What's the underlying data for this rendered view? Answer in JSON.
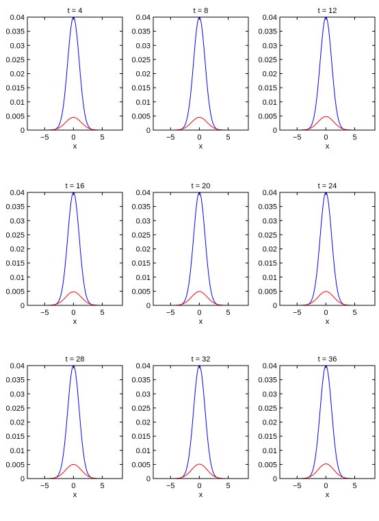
{
  "figure": {
    "rows": 3,
    "cols": 3
  },
  "chart_data": [
    {
      "type": "line",
      "title": "t = 4",
      "xlabel": "x",
      "ylabel": "",
      "xlim": [
        -8,
        8.5
      ],
      "ylim": [
        0,
        0.04
      ],
      "xticks": [
        -5,
        0,
        5
      ],
      "yticks": [
        0,
        0.005,
        0.01,
        0.015,
        0.02,
        0.025,
        0.03,
        0.035,
        0.04
      ],
      "grid": false,
      "series": [
        {
          "color": "#0000ff",
          "peak": 0.04,
          "sigma": 1.0
        },
        {
          "color": "#ff0000",
          "peak": 0.0045,
          "sigma": 1.35
        }
      ]
    },
    {
      "type": "line",
      "title": "t = 8",
      "xlabel": "x",
      "ylabel": "",
      "xlim": [
        -8,
        8.5
      ],
      "ylim": [
        0,
        0.04
      ],
      "xticks": [
        -5,
        0,
        5
      ],
      "yticks": [
        0,
        0.005,
        0.01,
        0.015,
        0.02,
        0.025,
        0.03,
        0.035,
        0.04
      ],
      "grid": false,
      "series": [
        {
          "color": "#0000ff",
          "peak": 0.04,
          "sigma": 1.0
        },
        {
          "color": "#ff0000",
          "peak": 0.0045,
          "sigma": 1.35
        }
      ]
    },
    {
      "type": "line",
      "title": "t = 12",
      "xlabel": "x",
      "ylabel": "",
      "xlim": [
        -8,
        8.5
      ],
      "ylim": [
        0,
        0.04
      ],
      "xticks": [
        -5,
        0,
        5
      ],
      "yticks": [
        0,
        0.005,
        0.01,
        0.015,
        0.02,
        0.025,
        0.03,
        0.035,
        0.04
      ],
      "grid": false,
      "series": [
        {
          "color": "#0000ff",
          "peak": 0.04,
          "sigma": 1.0
        },
        {
          "color": "#ff0000",
          "peak": 0.0048,
          "sigma": 1.35
        }
      ]
    },
    {
      "type": "line",
      "title": "t = 16",
      "xlabel": "x",
      "ylabel": "",
      "xlim": [
        -8,
        8.5
      ],
      "ylim": [
        0,
        0.04
      ],
      "xticks": [
        -5,
        0,
        5
      ],
      "yticks": [
        0,
        0.005,
        0.01,
        0.015,
        0.02,
        0.025,
        0.03,
        0.035,
        0.04
      ],
      "grid": false,
      "series": [
        {
          "color": "#0000ff",
          "peak": 0.04,
          "sigma": 1.0
        },
        {
          "color": "#ff0000",
          "peak": 0.0048,
          "sigma": 1.35
        }
      ]
    },
    {
      "type": "line",
      "title": "t = 20",
      "xlabel": "x",
      "ylabel": "",
      "xlim": [
        -8,
        8.5
      ],
      "ylim": [
        0,
        0.04
      ],
      "xticks": [
        -5,
        0,
        5
      ],
      "yticks": [
        0,
        0.005,
        0.01,
        0.015,
        0.02,
        0.025,
        0.03,
        0.035,
        0.04
      ],
      "grid": false,
      "series": [
        {
          "color": "#0000ff",
          "peak": 0.04,
          "sigma": 1.0
        },
        {
          "color": "#ff0000",
          "peak": 0.0049,
          "sigma": 1.35
        }
      ]
    },
    {
      "type": "line",
      "title": "t = 24",
      "xlabel": "x",
      "ylabel": "",
      "xlim": [
        -8,
        8.5
      ],
      "ylim": [
        0,
        0.04
      ],
      "xticks": [
        -5,
        0,
        5
      ],
      "yticks": [
        0,
        0.005,
        0.01,
        0.015,
        0.02,
        0.025,
        0.03,
        0.035,
        0.04
      ],
      "grid": false,
      "series": [
        {
          "color": "#0000ff",
          "peak": 0.04,
          "sigma": 1.0
        },
        {
          "color": "#ff0000",
          "peak": 0.0049,
          "sigma": 1.35
        }
      ]
    },
    {
      "type": "line",
      "title": "t = 28",
      "xlabel": "x",
      "ylabel": "",
      "xlim": [
        -8,
        8.5
      ],
      "ylim": [
        0,
        0.04
      ],
      "xticks": [
        -5,
        0,
        5
      ],
      "yticks": [
        0,
        0.005,
        0.01,
        0.015,
        0.02,
        0.025,
        0.03,
        0.035,
        0.04
      ],
      "grid": false,
      "series": [
        {
          "color": "#0000ff",
          "peak": 0.04,
          "sigma": 1.0
        },
        {
          "color": "#ff0000",
          "peak": 0.005,
          "sigma": 1.35
        }
      ]
    },
    {
      "type": "line",
      "title": "t = 32",
      "xlabel": "x",
      "ylabel": "",
      "xlim": [
        -8,
        8.5
      ],
      "ylim": [
        0,
        0.04
      ],
      "xticks": [
        -5,
        0,
        5
      ],
      "yticks": [
        0,
        0.005,
        0.01,
        0.015,
        0.02,
        0.025,
        0.03,
        0.035,
        0.04
      ],
      "grid": false,
      "series": [
        {
          "color": "#0000ff",
          "peak": 0.04,
          "sigma": 1.0
        },
        {
          "color": "#ff0000",
          "peak": 0.0051,
          "sigma": 1.35
        }
      ]
    },
    {
      "type": "line",
      "title": "t = 36",
      "xlabel": "x",
      "ylabel": "",
      "xlim": [
        -8,
        8.5
      ],
      "ylim": [
        0,
        0.04
      ],
      "xticks": [
        -5,
        0,
        5
      ],
      "yticks": [
        0,
        0.005,
        0.01,
        0.015,
        0.02,
        0.025,
        0.03,
        0.035,
        0.04
      ],
      "grid": false,
      "series": [
        {
          "color": "#0000ff",
          "peak": 0.04,
          "sigma": 1.0
        },
        {
          "color": "#ff0000",
          "peak": 0.0052,
          "sigma": 1.35
        }
      ]
    }
  ]
}
